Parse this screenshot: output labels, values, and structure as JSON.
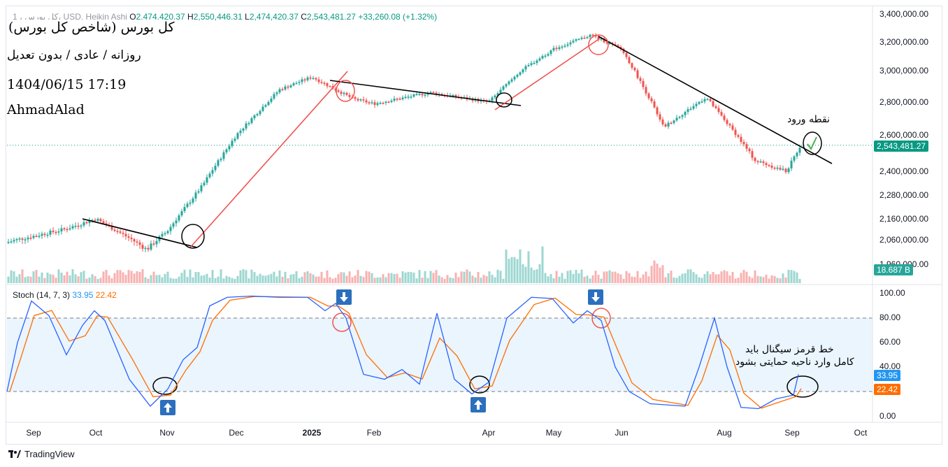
{
  "header": {
    "symbol_line": "1 ، کل بورس، USD, Heikin Ashi",
    "o_label": "O",
    "o": "2,474,420.37",
    "h_label": "H",
    "h": "2,550,446.31",
    "l_label": "L",
    "l": "2,474,420.37",
    "c_label": "C",
    "c": "2,543,481.27",
    "change": "+33,260.08 (+1.32%)"
  },
  "notes": {
    "line1": "کل بورس (شاخص کل بورس)",
    "line2": "روزانه / عادی / بدون تعدیل",
    "line3": "1404/06/15 17:19",
    "line4": "AhmadAlad",
    "entry": "نقطه ورود",
    "stoch_note1": "خط قرمز سیگنال باید",
    "stoch_note2": "کامل وارد ناحیه حمایتی بشود"
  },
  "price_axis": [
    "3,400,000.00",
    "3,200,000.00",
    "3,000,000.00",
    "2,800,000.00",
    "2,600,000.00",
    "2,400,000.00",
    "2,280,000.00",
    "2,160,000.00",
    "2,060,000.00",
    "1,960,000.00"
  ],
  "current_price": "2,543,481.27",
  "volume_badge": "18.687 B",
  "stoch": {
    "label": "Stoch (14, 7, 3)",
    "k": "33.95",
    "d": "22.42",
    "axis": [
      "100.00",
      "80.00",
      "60.00",
      "40.00",
      "20.00",
      "0.00"
    ]
  },
  "x_axis": [
    "Sep",
    "Oct",
    "Nov",
    "Dec",
    "2025",
    "Feb",
    "Apr",
    "May",
    "Jun",
    "Aug",
    "Sep",
    "Oct"
  ],
  "branding": "TradingView",
  "colors": {
    "up": "#26a69a",
    "down": "#ef5350",
    "k_line": "#2962ff",
    "d_line": "#ff6d00",
    "zone": "#e3f2fd",
    "badge_price": "#089981",
    "badge_k": "#2196f3",
    "badge_d": "#ff6d00"
  },
  "chart_data": [
    {
      "type": "candlestick",
      "style": "Heikin Ashi",
      "interval": "daily",
      "ylim": [
        1960000,
        3400000
      ],
      "x_ticks": [
        "Sep",
        "Oct",
        "Nov",
        "Dec",
        "2025",
        "Feb",
        "Apr",
        "May",
        "Jun",
        "Aug",
        "Sep",
        "Oct"
      ],
      "close_path": [
        {
          "t": "Sep",
          "v": 2050000
        },
        {
          "t": "mid-Sep",
          "v": 2110000
        },
        {
          "t": "Oct",
          "v": 2160000
        },
        {
          "t": "late-Oct",
          "v": 2020000
        },
        {
          "t": "Nov",
          "v": 2100000
        },
        {
          "t": "mid-Nov",
          "v": 2330000
        },
        {
          "t": "Dec",
          "v": 2600000
        },
        {
          "t": "mid-Dec",
          "v": 2880000
        },
        {
          "t": "2025",
          "v": 2960000
        },
        {
          "t": "mid-Jan",
          "v": 2820000
        },
        {
          "t": "Feb",
          "v": 2790000
        },
        {
          "t": "Mar",
          "v": 2860000
        },
        {
          "t": "Apr",
          "v": 2800000
        },
        {
          "t": "mid-Apr",
          "v": 3000000
        },
        {
          "t": "May",
          "v": 3150000
        },
        {
          "t": "late-May",
          "v": 3250000
        },
        {
          "t": "Jun",
          "v": 3150000
        },
        {
          "t": "mid-Jun",
          "v": 2650000
        },
        {
          "t": "Jul",
          "v": 2830000
        },
        {
          "t": "Aug",
          "v": 2460000
        },
        {
          "t": "late-Aug",
          "v": 2400000
        },
        {
          "t": "Sep",
          "v": 2543481.27
        }
      ],
      "last_price": 2543481.27,
      "volume_last": "18.687 B"
    },
    {
      "type": "line",
      "title": "Stoch (14, 7, 3)",
      "ylim": [
        0,
        100
      ],
      "levels": [
        20,
        80
      ],
      "series": [
        {
          "name": "%K",
          "last": 33.95
        },
        {
          "name": "%D",
          "last": 22.42
        }
      ]
    }
  ]
}
